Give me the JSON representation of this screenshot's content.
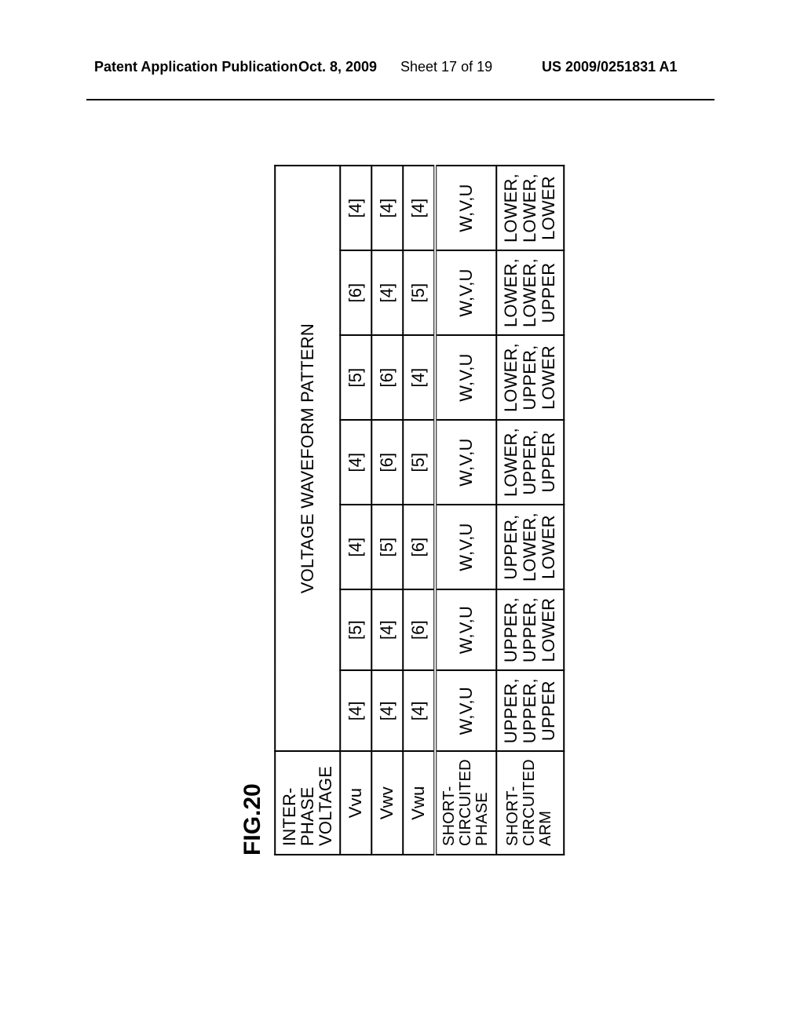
{
  "header": {
    "pubType": "Patent Application Publication",
    "date": "Oct. 8, 2009",
    "sheet": "Sheet 17 of 19",
    "pubNumber": "US 2009/0251831 A1"
  },
  "figure": {
    "label": "FIG.20",
    "table": {
      "cornerHeader": "INTER-PHASE\nVOLTAGE",
      "spanHeader": "VOLTAGE WAVEFORM PATTERN",
      "columnsCount": 7,
      "rows": [
        {
          "label": "Vvu",
          "cells": [
            "[4]",
            "[5]",
            "[4]",
            "[4]",
            "[5]",
            "[6]",
            "[4]"
          ]
        },
        {
          "label": "Vwv",
          "cells": [
            "[4]",
            "[4]",
            "[5]",
            "[6]",
            "[6]",
            "[4]",
            "[4]"
          ]
        },
        {
          "label": "Vwu",
          "cells": [
            "[4]",
            "[6]",
            "[6]",
            "[5]",
            "[4]",
            "[5]",
            "[4]"
          ]
        }
      ],
      "shortPhase": {
        "label": "SHORT-CIRCUITED\nPHASE",
        "cells": [
          "W,V,U",
          "W,V,U",
          "W,V,U",
          "W,V,U",
          "W,V,U",
          "W,V,U",
          "W,V,U"
        ]
      },
      "shortArm": {
        "label": "SHORT-CIRCUITED\nARM",
        "cells": [
          "UPPER,\nUPPER,\nUPPER",
          "UPPER,\nUPPER,\nLOWER",
          "UPPER,\nLOWER,\nLOWER",
          "LOWER,\nUPPER,\nUPPER",
          "LOWER,\nUPPER,\nLOWER",
          "LOWER,\nLOWER,\nUPPER",
          "LOWER,\nLOWER,\nLOWER"
        ]
      }
    }
  },
  "style": {
    "background": "#ffffff",
    "text": "#000000",
    "border": "#000000",
    "fontFamily": "Arial Narrow",
    "figLabelSize": 30,
    "tableFontSize": 22,
    "rowLabelFontSize": 20,
    "dataColWidth": 82,
    "leftColWidth": 215
  }
}
